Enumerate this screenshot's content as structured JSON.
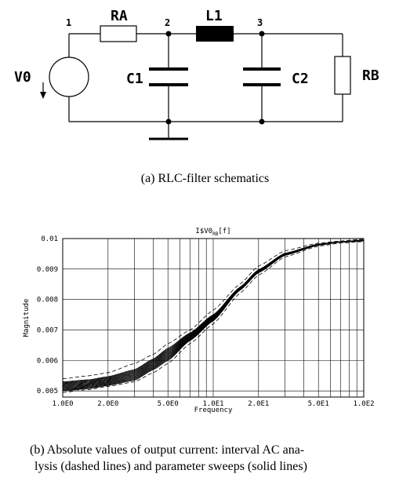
{
  "schematic": {
    "labels": {
      "ra": "RA",
      "l1": "L1",
      "rb": "RB",
      "c1": "C1",
      "c2": "C2",
      "v0": "V0"
    },
    "nodes": [
      "1",
      "2",
      "3"
    ],
    "caption": "(a) RLC-filter schematics"
  },
  "chart_data": {
    "type": "line",
    "title": "I$V0",
    "title_sub": "RB",
    "title_suffix": "[f]",
    "xlabel": "Frequency",
    "ylabel": "Magnitude",
    "xscale": "log",
    "xlim": [
      1,
      100
    ],
    "ylim": [
      0.0048,
      0.01
    ],
    "x_ticks": [
      1,
      2,
      5,
      10,
      20,
      50,
      100
    ],
    "x_tick_labels": [
      "1.0E0",
      "2.0E0",
      "5.0E0",
      "1.0E1",
      "2.0E1",
      "5.0E1",
      "1.0E2"
    ],
    "y_ticks": [
      0.005,
      0.006,
      0.007,
      0.008,
      0.009,
      0.01
    ],
    "y_tick_labels": [
      "0.005",
      "0.006",
      "0.007",
      "0.008",
      "0.009",
      "0.01"
    ],
    "series": [
      {
        "name": "interval upper (dashed)",
        "style": "dashed",
        "x": [
          1,
          1.5,
          2,
          3,
          4,
          5,
          7,
          10,
          15,
          20,
          30,
          50,
          70,
          100
        ],
        "y": [
          0.0054,
          0.0055,
          0.0056,
          0.0059,
          0.0062,
          0.00655,
          0.007,
          0.00765,
          0.0085,
          0.0091,
          0.0096,
          0.00985,
          0.00992,
          0.00998
        ]
      },
      {
        "name": "interval lower (dashed)",
        "style": "dashed",
        "x": [
          1,
          1.5,
          2,
          3,
          4,
          5,
          7,
          10,
          15,
          20,
          30,
          50,
          70,
          100
        ],
        "y": [
          0.00495,
          0.00505,
          0.00515,
          0.0053,
          0.0056,
          0.0059,
          0.00655,
          0.0072,
          0.0082,
          0.0088,
          0.0094,
          0.00975,
          0.00985,
          0.0099
        ]
      },
      {
        "name": "parameter sweeps (solid)",
        "style": "solid",
        "sweep_count": 14,
        "x": [
          1,
          1.5,
          2,
          3,
          4,
          5,
          7,
          10,
          15,
          20,
          30,
          50,
          70,
          100
        ],
        "y_min": [
          0.005,
          0.00508,
          0.00518,
          0.00535,
          0.0057,
          0.006,
          0.00665,
          0.0073,
          0.0083,
          0.00888,
          0.00945,
          0.00978,
          0.00988,
          0.00992
        ],
        "y_max": [
          0.0053,
          0.00537,
          0.00547,
          0.0057,
          0.00605,
          0.0064,
          0.0069,
          0.0075,
          0.0084,
          0.00898,
          0.00952,
          0.00982,
          0.0099,
          0.00995
        ]
      }
    ],
    "caption_line1": "(b) Absolute values of output current: interval AC ana-",
    "caption_line2": "lysis (dashed lines) and parameter sweeps (solid lines)"
  }
}
